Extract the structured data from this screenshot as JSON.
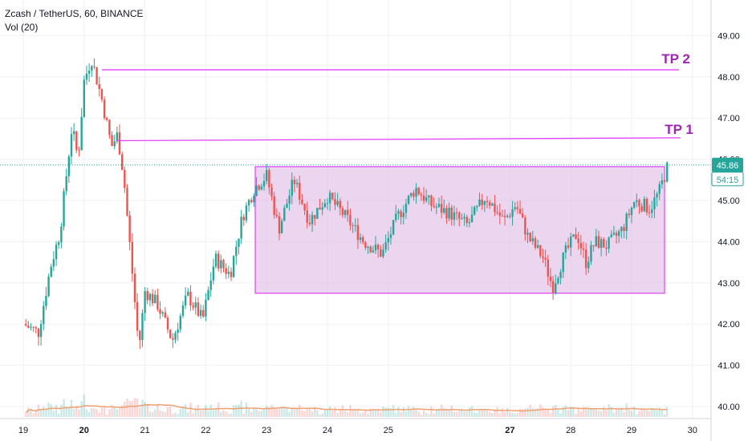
{
  "header": {
    "title": "Zcash / TetherUS, 60, BINANCE",
    "indicator": "Vol (20)"
  },
  "colors": {
    "up": "#26a69a",
    "down": "#ef5350",
    "zone_fill": "#e1bee7",
    "zone_stroke": "#e040fb",
    "target_label": "#9c27b0",
    "last_price_bg": "#26a69a",
    "volume_ma": "#f0a070",
    "grid": "#eef0f3",
    "axis_text": "#131722"
  },
  "chart_data": {
    "type": "candlestick",
    "title": "Zcash / TetherUS, 60, BINANCE",
    "ylim": [
      39.7,
      50.0
    ],
    "y_ticks": [
      "40.00",
      "41.00",
      "42.00",
      "43.00",
      "44.00",
      "45.00",
      "46.00",
      "47.00",
      "48.00",
      "49.00"
    ],
    "x_ticks": [
      "19",
      "20",
      "21",
      "22",
      "23",
      "24",
      "25",
      "27",
      "28",
      "29",
      "30"
    ],
    "bold_x_ticks": [
      "20",
      "27"
    ],
    "last_price": "45.86",
    "countdown": "54:15",
    "grid": true,
    "levels": [
      {
        "label": "TP 2",
        "value": 48.17,
        "value_end": 48.17
      },
      {
        "label": "TP 1",
        "value": 46.45,
        "value_end": 46.52
      }
    ],
    "range_box": {
      "low": 42.75,
      "high": 45.82
    },
    "volume_indicator": {
      "name": "Vol (20)",
      "has_moving_average": true
    },
    "price_path": [
      {
        "t": 19.0,
        "p": 42.0
      },
      {
        "t": 19.25,
        "p": 41.8
      },
      {
        "t": 19.45,
        "p": 43.4
      },
      {
        "t": 19.6,
        "p": 44.2
      },
      {
        "t": 19.8,
        "p": 46.8
      },
      {
        "t": 19.9,
        "p": 46.0
      },
      {
        "t": 20.0,
        "p": 47.9
      },
      {
        "t": 20.12,
        "p": 48.45
      },
      {
        "t": 20.3,
        "p": 47.4
      },
      {
        "t": 20.45,
        "p": 46.3
      },
      {
        "t": 20.55,
        "p": 46.6
      },
      {
        "t": 20.65,
        "p": 45.6
      },
      {
        "t": 20.8,
        "p": 43.1
      },
      {
        "t": 20.9,
        "p": 41.4
      },
      {
        "t": 21.0,
        "p": 42.8
      },
      {
        "t": 21.2,
        "p": 42.5
      },
      {
        "t": 21.45,
        "p": 41.6
      },
      {
        "t": 21.7,
        "p": 42.7
      },
      {
        "t": 21.95,
        "p": 42.1
      },
      {
        "t": 22.15,
        "p": 43.6
      },
      {
        "t": 22.4,
        "p": 43.2
      },
      {
        "t": 22.6,
        "p": 44.6
      },
      {
        "t": 22.8,
        "p": 45.3
      },
      {
        "t": 23.0,
        "p": 45.6
      },
      {
        "t": 23.2,
        "p": 44.3
      },
      {
        "t": 23.45,
        "p": 45.5
      },
      {
        "t": 23.7,
        "p": 44.5
      },
      {
        "t": 24.0,
        "p": 45.1
      },
      {
        "t": 24.3,
        "p": 44.6
      },
      {
        "t": 24.6,
        "p": 44.0
      },
      {
        "t": 24.9,
        "p": 43.7
      },
      {
        "t": 25.15,
        "p": 44.6
      },
      {
        "t": 25.45,
        "p": 45.3
      },
      {
        "t": 25.7,
        "p": 44.9
      },
      {
        "t": 26.0,
        "p": 44.7
      },
      {
        "t": 26.3,
        "p": 44.4
      },
      {
        "t": 26.6,
        "p": 45.1
      },
      {
        "t": 26.9,
        "p": 44.5
      },
      {
        "t": 27.1,
        "p": 44.9
      },
      {
        "t": 27.3,
        "p": 44.1
      },
      {
        "t": 27.55,
        "p": 43.6
      },
      {
        "t": 27.7,
        "p": 42.9
      },
      {
        "t": 27.9,
        "p": 43.7
      },
      {
        "t": 28.1,
        "p": 44.2
      },
      {
        "t": 28.25,
        "p": 43.5
      },
      {
        "t": 28.4,
        "p": 44.0
      },
      {
        "t": 28.6,
        "p": 43.9
      },
      {
        "t": 28.85,
        "p": 44.3
      },
      {
        "t": 29.05,
        "p": 45.0
      },
      {
        "t": 29.3,
        "p": 44.8
      },
      {
        "t": 29.45,
        "p": 45.2
      },
      {
        "t": 29.6,
        "p": 45.86
      }
    ]
  }
}
